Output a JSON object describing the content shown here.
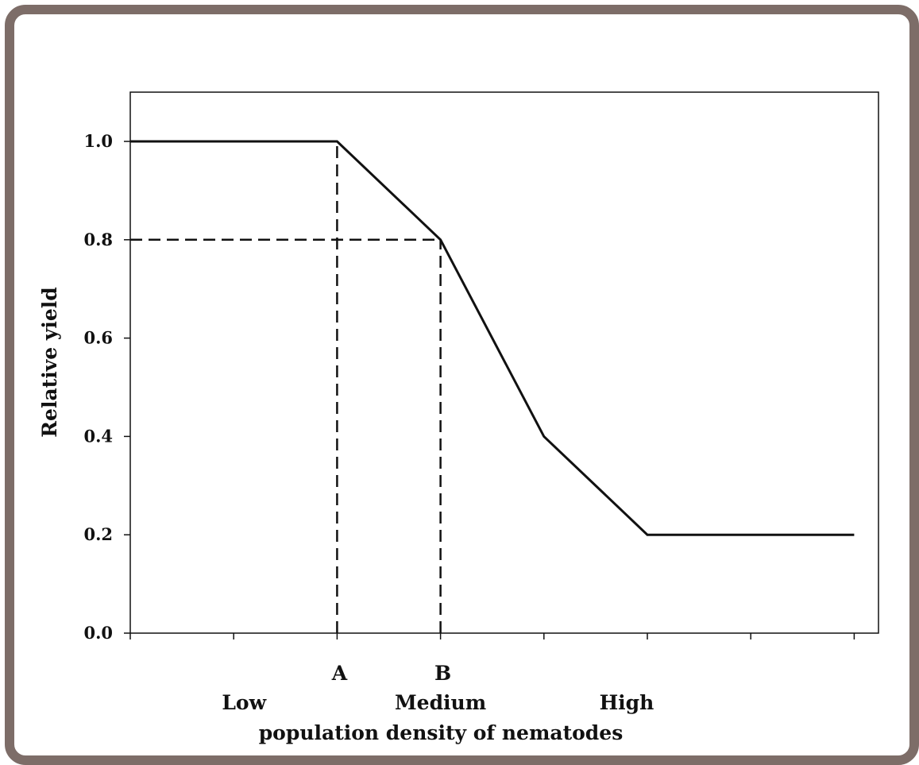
{
  "chart_data": {
    "type": "line",
    "title": "",
    "xlabel": "population density of nematodes",
    "ylabel": "Relative yield",
    "xlim": [
      0,
      7
    ],
    "ylim": [
      0,
      1.1
    ],
    "x_ticks": [
      0,
      1,
      2,
      3,
      4,
      5,
      6,
      7
    ],
    "y_ticks": [
      "0.0",
      "0.2",
      "0.4",
      "0.6",
      "0.8",
      "1.0"
    ],
    "y_tick_values": [
      0,
      0.2,
      0.4,
      0.6,
      0.8,
      1.0
    ],
    "grid": false,
    "legend": "none",
    "series": [
      {
        "x": [
          0,
          2,
          3,
          4,
          5,
          7
        ],
        "y": [
          1.0,
          1.0,
          0.8,
          0.4,
          0.2,
          0.2
        ]
      }
    ],
    "reference_lines": [
      {
        "style": "dashed",
        "orientation": "vertical",
        "x": 2,
        "y_from": 0,
        "y_to": 1.0
      },
      {
        "style": "dashed",
        "orientation": "vertical",
        "x": 3,
        "y_from": 0,
        "y_to": 0.8
      },
      {
        "style": "dashed",
        "orientation": "horizontal",
        "y": 0.8,
        "x_from": 0,
        "x_to": 3
      }
    ],
    "point_labels": [
      {
        "text": "A",
        "x": 2
      },
      {
        "text": "B",
        "x": 3
      }
    ],
    "category_labels": [
      {
        "text": "Low",
        "x": 1.1
      },
      {
        "text": "Medium",
        "x": 3.0
      },
      {
        "text": "High",
        "x": 4.8
      }
    ]
  },
  "colors": {
    "frame": "#7d6d68",
    "line": "#111111"
  }
}
